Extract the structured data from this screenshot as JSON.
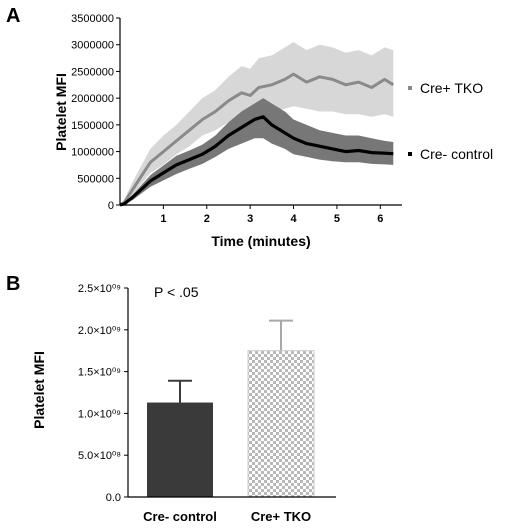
{
  "chart_data": [
    {
      "panel": "A",
      "type": "line",
      "xlabel": "Time (minutes)",
      "ylabel": "Platelet MFI",
      "xlim": [
        0,
        6.5
      ],
      "ylim": [
        0,
        3500000
      ],
      "x_ticks": [
        "1",
        "2",
        "3",
        "4",
        "5",
        "6"
      ],
      "y_ticks": [
        "0",
        "500000",
        "1000000",
        "1500000",
        "2000000",
        "2500000",
        "3000000",
        "3500000"
      ],
      "legend_position": "right",
      "series": [
        {
          "name": "Cre+ TKO",
          "color": "#8a8a8a",
          "band_color": "#d7d7d7",
          "x": [
            0,
            0.1,
            0.3,
            0.5,
            0.7,
            1.0,
            1.3,
            1.6,
            1.9,
            2.2,
            2.5,
            2.8,
            3.0,
            3.2,
            3.5,
            3.8,
            4.0,
            4.3,
            4.6,
            4.9,
            5.2,
            5.5,
            5.8,
            6.1,
            6.3
          ],
          "y": [
            0,
            50000,
            300000,
            550000,
            800000,
            1000000,
            1200000,
            1400000,
            1600000,
            1750000,
            1950000,
            2100000,
            2050000,
            2200000,
            2250000,
            2350000,
            2450000,
            2300000,
            2400000,
            2350000,
            2250000,
            2300000,
            2200000,
            2350000,
            2250000
          ],
          "lower": [
            0,
            20000,
            200000,
            400000,
            600000,
            750000,
            950000,
            1100000,
            1300000,
            1400000,
            1550000,
            1650000,
            1600000,
            1700000,
            1750000,
            1800000,
            1850000,
            1800000,
            1750000,
            1750000,
            1700000,
            1700000,
            1650000,
            1700000,
            1650000
          ],
          "upper": [
            0,
            100000,
            450000,
            750000,
            1050000,
            1300000,
            1500000,
            1750000,
            2000000,
            2150000,
            2400000,
            2600000,
            2550000,
            2750000,
            2800000,
            2950000,
            3050000,
            2900000,
            3000000,
            2950000,
            2850000,
            2900000,
            2800000,
            2950000,
            2900000
          ]
        },
        {
          "name": "Cre- control",
          "color": "#000000",
          "band_color": "#777777",
          "x": [
            0,
            0.1,
            0.3,
            0.5,
            0.7,
            1.0,
            1.3,
            1.6,
            1.9,
            2.2,
            2.5,
            2.8,
            3.1,
            3.3,
            3.5,
            3.8,
            4.0,
            4.3,
            4.6,
            4.9,
            5.2,
            5.5,
            5.8,
            6.1,
            6.3
          ],
          "y": [
            0,
            20000,
            150000,
            300000,
            450000,
            600000,
            750000,
            850000,
            950000,
            1100000,
            1300000,
            1450000,
            1600000,
            1650000,
            1500000,
            1350000,
            1250000,
            1150000,
            1100000,
            1050000,
            1000000,
            1020000,
            980000,
            970000,
            960000
          ],
          "lower": [
            0,
            10000,
            100000,
            220000,
            340000,
            460000,
            580000,
            680000,
            770000,
            900000,
            1050000,
            1150000,
            1250000,
            1250000,
            1150000,
            1050000,
            950000,
            900000,
            850000,
            820000,
            800000,
            800000,
            770000,
            760000,
            750000
          ],
          "upper": [
            0,
            30000,
            200000,
            380000,
            560000,
            740000,
            920000,
            1020000,
            1130000,
            1300000,
            1550000,
            1750000,
            1900000,
            2000000,
            1900000,
            1750000,
            1600000,
            1500000,
            1400000,
            1350000,
            1300000,
            1300000,
            1250000,
            1200000,
            1180000
          ]
        }
      ]
    },
    {
      "panel": "B",
      "type": "bar",
      "ylabel": "Platelet MFI",
      "ylim": [
        0,
        2500000000
      ],
      "y_ticks": [
        "0.0",
        "5.0×10⁰⁸",
        "1.0×10⁰⁹",
        "1.5×10⁰⁹",
        "2.0×10⁰⁹",
        "2.5×10⁰⁹"
      ],
      "categories": [
        "Cre- control",
        "Cre+ TKO"
      ],
      "values": [
        1130000000,
        1750000000
      ],
      "error_upper": [
        1390000000,
        2110000000
      ],
      "colors": [
        "#3a3a3a",
        "checkered"
      ],
      "annotation": "P < .05"
    }
  ]
}
